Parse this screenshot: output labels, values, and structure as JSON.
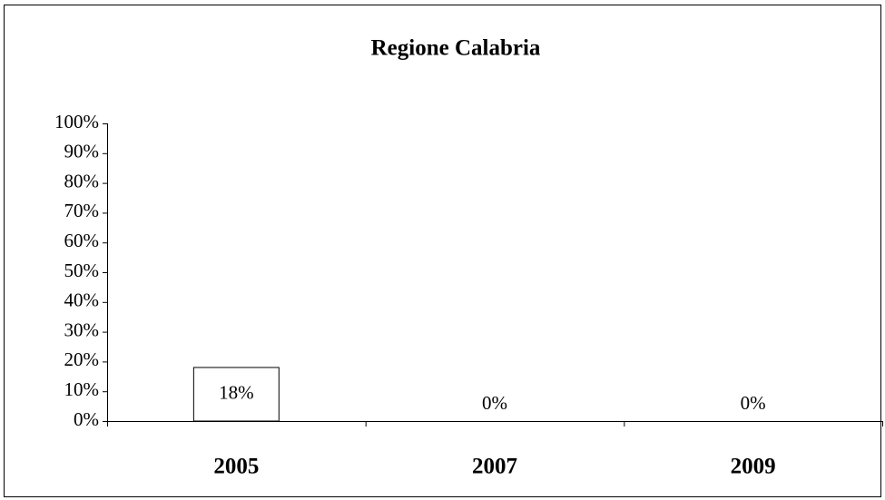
{
  "chart_data": {
    "type": "bar",
    "title": "Regione Calabria",
    "categories": [
      "2005",
      "2007",
      "2009"
    ],
    "values": [
      18,
      0,
      0
    ],
    "value_labels": [
      "18%",
      "0%",
      "0%"
    ],
    "color": "#ffffff",
    "ylim": [
      0,
      100
    ],
    "yticks": [
      {
        "value": 0,
        "label": "0%"
      },
      {
        "value": 10,
        "label": "10%"
      },
      {
        "value": 20,
        "label": "20%"
      },
      {
        "value": 30,
        "label": "30%"
      },
      {
        "value": 40,
        "label": "40%"
      },
      {
        "value": 50,
        "label": "50%"
      },
      {
        "value": 60,
        "label": "60%"
      },
      {
        "value": 70,
        "label": "70%"
      },
      {
        "value": 80,
        "label": "80%"
      },
      {
        "value": 90,
        "label": "90%"
      },
      {
        "value": 100,
        "label": "100%"
      }
    ],
    "grid": false
  }
}
